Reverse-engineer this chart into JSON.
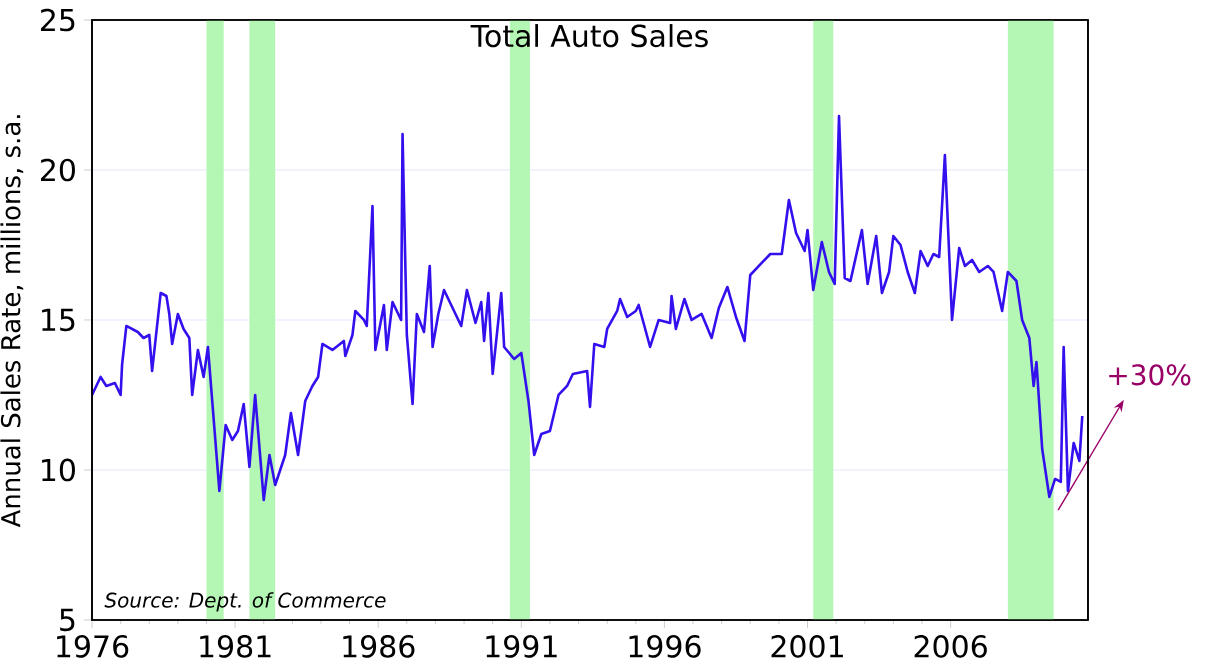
{
  "chart_data": {
    "type": "line",
    "title": "Total Auto Sales",
    "ylabel": "Annual Sales Rate, millions, s.a.",
    "annotations": [
      "Source:  Dept. of Commerce",
      "+30%"
    ],
    "series": [
      {
        "color": "#3311ee",
        "x": [
          1976.0,
          1976.3,
          1976.5,
          1976.8,
          1977.0,
          1977.05,
          1977.2,
          1977.6,
          1977.8,
          1978.0,
          1978.1,
          1978.4,
          1978.6,
          1978.7,
          1978.8,
          1979.0,
          1979.2,
          1979.4,
          1979.5,
          1979.7,
          1979.9,
          1980.05,
          1980.45,
          1980.67,
          1980.9,
          1981.1,
          1981.3,
          1981.5,
          1981.7,
          1982.0,
          1982.2,
          1982.4,
          1982.75,
          1982.95,
          1983.2,
          1983.45,
          1983.7,
          1983.9,
          1984.05,
          1984.4,
          1984.8,
          1984.85,
          1985.1,
          1985.2,
          1985.5,
          1985.6,
          1985.8,
          1985.9,
          1986.2,
          1986.3,
          1986.5,
          1986.8,
          1986.85,
          1987.0,
          1987.2,
          1987.35,
          1987.6,
          1987.8,
          1987.9,
          1988.1,
          1988.3,
          1988.5,
          1988.9,
          1989.1,
          1989.4,
          1989.6,
          1989.7,
          1989.85,
          1990.0,
          1990.3,
          1990.4,
          1990.75,
          1991.0,
          1991.25,
          1991.45,
          1991.7,
          1992.0,
          1992.3,
          1992.6,
          1992.8,
          1993.3,
          1993.4,
          1993.55,
          1993.9,
          1994.0,
          1994.35,
          1994.45,
          1994.7,
          1995.0,
          1995.1,
          1995.5,
          1995.8,
          1996.2,
          1996.25,
          1996.4,
          1996.7,
          1996.95,
          1997.3,
          1997.65,
          1997.9,
          1998.2,
          1998.5,
          1998.8,
          1999.0,
          1999.4,
          1999.7,
          2000.1,
          2000.35,
          2000.6,
          2000.9,
          2001.0,
          2001.2,
          2001.5,
          2001.75,
          2001.95,
          2002.1,
          2002.3,
          2002.5,
          2002.9,
          2003.1,
          2003.4,
          2003.6,
          2003.85,
          2004.0,
          2004.25,
          2004.5,
          2004.75,
          2004.95,
          2005.2,
          2005.4,
          2005.6,
          2005.8,
          2006.05,
          2006.3,
          2006.5,
          2006.75,
          2007.0,
          2007.3,
          2007.5,
          2007.8,
          2008.0,
          2008.3,
          2008.5,
          2008.75,
          2008.9,
          2009.0,
          2009.2,
          2009.45,
          2009.65,
          2009.85,
          2009.95,
          2010.1,
          2010.3,
          2010.5,
          2010.6
        ],
        "values": [
          12.5,
          13.1,
          12.8,
          12.9,
          12.5,
          13.5,
          14.8,
          14.6,
          14.4,
          14.5,
          13.3,
          15.9,
          15.8,
          15.2,
          14.2,
          15.2,
          14.7,
          14.4,
          12.5,
          14.0,
          13.1,
          14.1,
          9.3,
          11.5,
          11.0,
          11.3,
          12.2,
          10.1,
          12.5,
          9.0,
          10.5,
          9.5,
          10.5,
          11.9,
          10.5,
          12.3,
          12.8,
          13.1,
          14.2,
          14.0,
          14.3,
          13.8,
          14.5,
          15.3,
          15.0,
          14.8,
          18.8,
          14.0,
          15.5,
          14.0,
          15.6,
          15.0,
          21.2,
          14.5,
          12.2,
          15.2,
          14.6,
          16.8,
          14.1,
          15.2,
          16.0,
          15.6,
          14.8,
          16.0,
          14.9,
          15.6,
          14.3,
          15.9,
          13.2,
          15.9,
          14.1,
          13.7,
          13.9,
          12.3,
          10.5,
          11.2,
          11.3,
          12.5,
          12.8,
          13.2,
          13.3,
          12.1,
          14.2,
          14.1,
          14.7,
          15.3,
          15.7,
          15.1,
          15.3,
          15.5,
          14.1,
          15.0,
          14.9,
          15.8,
          14.7,
          15.7,
          15.0,
          15.2,
          14.4,
          15.4,
          16.1,
          15.1,
          14.3,
          16.5,
          16.9,
          17.2,
          17.2,
          19.0,
          17.9,
          17.3,
          18.0,
          16.0,
          17.6,
          16.6,
          16.2,
          21.8,
          16.4,
          16.3,
          18.0,
          16.2,
          17.8,
          15.9,
          16.6,
          17.8,
          17.5,
          16.6,
          15.9,
          17.3,
          16.8,
          17.2,
          17.1,
          20.5,
          15.0,
          17.4,
          16.8,
          17.0,
          16.6,
          16.8,
          16.6,
          15.3,
          16.6,
          16.3,
          15.0,
          14.4,
          12.8,
          13.6,
          10.7,
          9.1,
          9.7,
          9.6,
          14.1,
          9.3,
          10.9,
          10.3,
          11.8
        ]
      }
    ],
    "xlim": [
      1976,
      2010.8
    ],
    "xticks": [
      1976,
      1981,
      1986,
      1991,
      1996,
      2001,
      2006
    ],
    "ylim": [
      5,
      25
    ],
    "yticks": [
      5,
      10,
      15,
      20,
      25
    ],
    "grid": "y",
    "bands": [
      {
        "axis": "x",
        "from": 1980.0,
        "to": 1980.6,
        "color": "#b4f7b4"
      },
      {
        "axis": "x",
        "from": 1981.5,
        "to": 1982.4,
        "color": "#b4f7b4"
      },
      {
        "axis": "x",
        "from": 1990.6,
        "to": 1991.3,
        "color": "#b4f7b4"
      },
      {
        "axis": "x",
        "from": 2001.2,
        "to": 2001.9,
        "color": "#b4f7b4"
      },
      {
        "axis": "x",
        "from": 2008.0,
        "to": 2009.6,
        "color": "#b4f7b4"
      }
    ]
  }
}
